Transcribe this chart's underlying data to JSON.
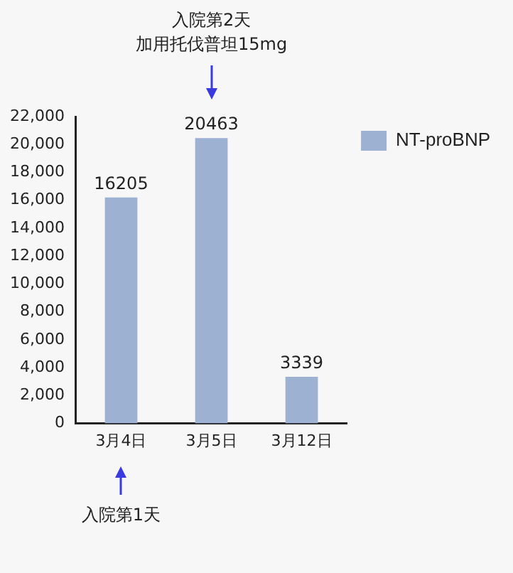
{
  "chart_data": {
    "type": "bar",
    "categories": [
      "3月4日",
      "3月5日",
      "3月12日"
    ],
    "series": [
      {
        "name": "NT-proBNP",
        "color": "#9db1d3",
        "values": [
          16205,
          20463,
          3339
        ]
      }
    ],
    "ylim": [
      0,
      22000
    ],
    "yticks": [
      {
        "value": 0,
        "label": "0"
      },
      {
        "value": 2000,
        "label": "2,000"
      },
      {
        "value": 4000,
        "label": "4,000"
      },
      {
        "value": 6000,
        "label": "6,000"
      },
      {
        "value": 8000,
        "label": "8,000"
      },
      {
        "value": 10000,
        "label": "10,000"
      },
      {
        "value": 12000,
        "label": "12,000"
      },
      {
        "value": 14000,
        "label": "14,000"
      },
      {
        "value": 16000,
        "label": "16,000"
      },
      {
        "value": 18000,
        "label": "18,000"
      },
      {
        "value": 20000,
        "label": "20,000"
      },
      {
        "value": 22000,
        "label": "22,000"
      }
    ],
    "grid": false,
    "legend": "right",
    "data_labels": true,
    "annotations": [
      "入院第2天",
      "加用托伐普坦15mg",
      "入院第1天"
    ]
  }
}
